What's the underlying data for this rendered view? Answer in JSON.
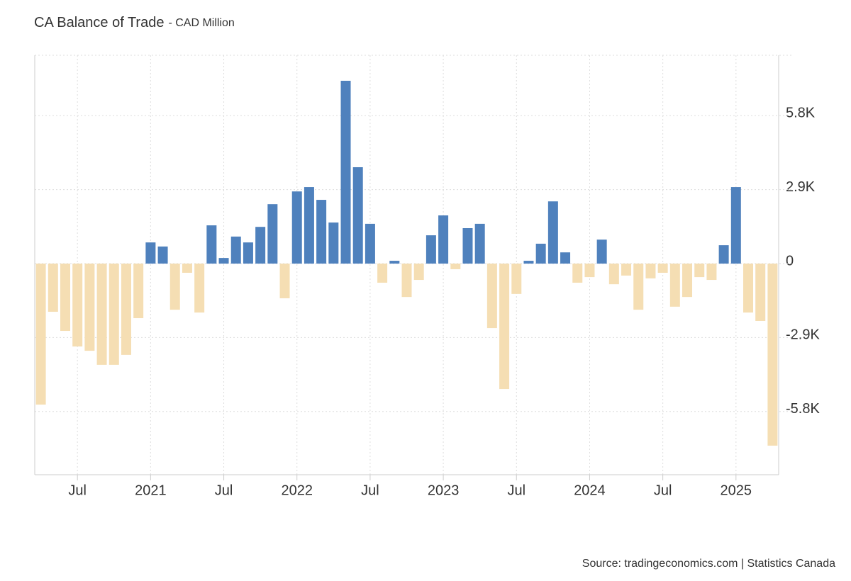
{
  "chart_data": {
    "type": "bar",
    "title": "CA Balance of Trade",
    "subtitle": "- CAD Million",
    "source": "Source: tradingeconomics.com | Statistics Canada",
    "categories": [
      null,
      null,
      null,
      "Jul",
      null,
      null,
      null,
      null,
      null,
      "2021",
      null,
      null,
      null,
      null,
      null,
      "Jul",
      null,
      null,
      null,
      null,
      null,
      "2022",
      null,
      null,
      null,
      null,
      null,
      "Jul",
      null,
      null,
      null,
      null,
      null,
      "2023",
      null,
      null,
      null,
      null,
      null,
      "Jul",
      null,
      null,
      null,
      null,
      null,
      "2024",
      null,
      null,
      null,
      null,
      null,
      "Jul",
      null,
      null,
      null,
      null,
      null,
      "2025",
      null,
      null,
      null
    ],
    "values": [
      -5530,
      -1890,
      -2640,
      -3250,
      -3420,
      -3970,
      -3970,
      -3580,
      -2140,
      830,
      670,
      -1810,
      -360,
      -1920,
      1500,
      220,
      1060,
      830,
      1440,
      2330,
      -1360,
      2830,
      3000,
      2500,
      1610,
      7170,
      3780,
      1560,
      -750,
      110,
      -1310,
      -640,
      1110,
      1890,
      -220,
      1390,
      1560,
      -2530,
      -4920,
      -1190,
      110,
      780,
      2440,
      440,
      -750,
      -530,
      940,
      -810,
      -470,
      -1810,
      -580,
      -360,
      -1690,
      -1310,
      -530,
      -640,
      720,
      3000,
      -1920,
      -2250,
      -7140
    ],
    "positive_color": "#4f81bd",
    "negative_color": "#f5deb3",
    "ylim": [
      -8280,
      8170
    ],
    "yticks": [
      {
        "value": -5800,
        "label": "-5.8K"
      },
      {
        "value": -2900,
        "label": "-2.9K"
      },
      0,
      {
        "value": 2900,
        "label": "2.9K"
      },
      {
        "value": 5800,
        "label": "5.8K"
      }
    ],
    "grid": true
  }
}
